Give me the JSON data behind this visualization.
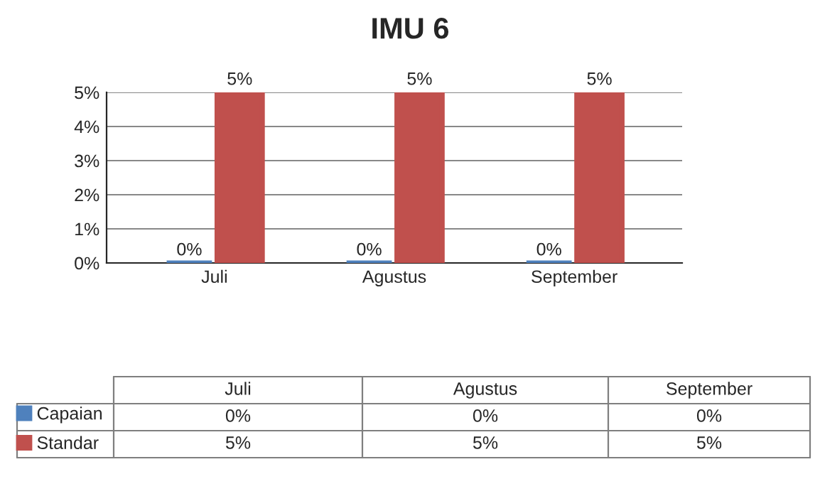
{
  "chart_data": {
    "type": "bar",
    "title": "IMU 6",
    "categories": [
      "Juli",
      "Agustus",
      "September"
    ],
    "series": [
      {
        "name": "Capaian",
        "color": "#4f81bd",
        "values": [
          0,
          0,
          0
        ],
        "value_labels": [
          "0%",
          "0%",
          "0%"
        ]
      },
      {
        "name": "Standar",
        "color": "#c0504d",
        "values": [
          5,
          5,
          5
        ],
        "value_labels": [
          "5%",
          "5%",
          "5%"
        ]
      }
    ],
    "ylim": [
      0,
      5
    ],
    "yticks": [
      {
        "value": 0,
        "label": "0%"
      },
      {
        "value": 1,
        "label": "1%"
      },
      {
        "value": 2,
        "label": "2%"
      },
      {
        "value": 3,
        "label": "3%"
      },
      {
        "value": 4,
        "label": "4%"
      },
      {
        "value": 5,
        "label": "5%"
      }
    ],
    "grid": "y",
    "legend": "bottom"
  }
}
